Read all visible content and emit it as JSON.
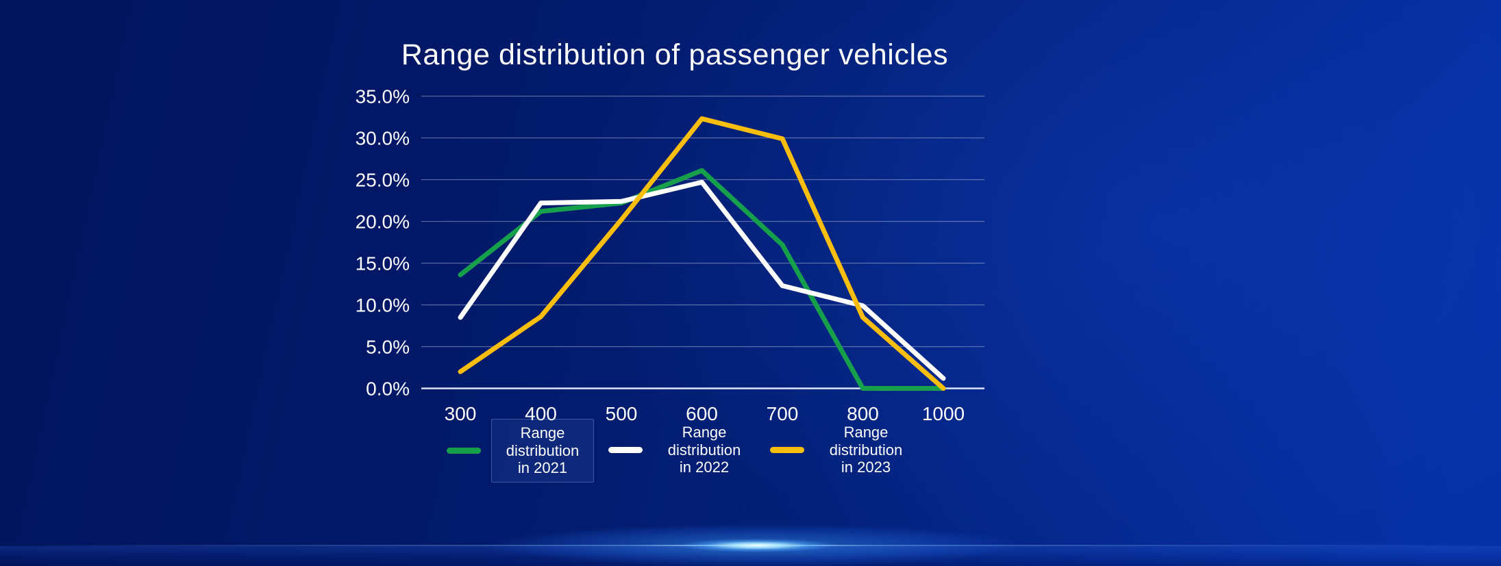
{
  "chart": {
    "title": "Range distribution of passenger vehicles"
  },
  "chart_data": {
    "type": "line",
    "title": "Range distribution of passenger vehicles",
    "categories": [
      "300",
      "400",
      "500",
      "600",
      "700",
      "800",
      "1000"
    ],
    "series": [
      {
        "name": "Range distribution in 2021",
        "color": "#16a04c",
        "values": [
          13.6,
          21.2,
          22.2,
          26.1,
          17.2,
          0.0,
          0.0
        ]
      },
      {
        "name": "Range distribution in 2022",
        "color": "#ffffff",
        "values": [
          8.5,
          22.2,
          22.4,
          24.7,
          12.3,
          9.9,
          1.2
        ]
      },
      {
        "name": "Range distribution in 2023",
        "color": "#fcbe0d",
        "values": [
          2.0,
          8.6,
          20.2,
          32.3,
          29.9,
          8.5,
          0.0
        ]
      }
    ],
    "xlabel": "",
    "ylabel": "",
    "ylim": [
      0,
      35
    ],
    "ytick_step": 5,
    "ytick_labels": [
      "0.0%",
      "5.0%",
      "10.0%",
      "15.0%",
      "20.0%",
      "25.0%",
      "30.0%",
      "35.0%"
    ],
    "grid": "horizontal",
    "legend_position": "bottom"
  },
  "legend": {
    "items": [
      {
        "label": "Range\ndistribution\nin 2021",
        "color": "#16a04c",
        "boxed": true,
        "id": "2021"
      },
      {
        "label": "Range\ndistribution\nin 2022",
        "color": "#ffffff",
        "boxed": false,
        "id": "2022"
      },
      {
        "label": "Range\ndistribution\nin 2023",
        "color": "#fcbe0d",
        "boxed": false,
        "id": "2023"
      }
    ]
  },
  "colors": {
    "background_dark": "#021a6b",
    "background_light": "#0631a5",
    "gridline": "rgba(255,255,255,0.34)",
    "axis_line": "#dde5f6",
    "text": "#ffffff"
  }
}
